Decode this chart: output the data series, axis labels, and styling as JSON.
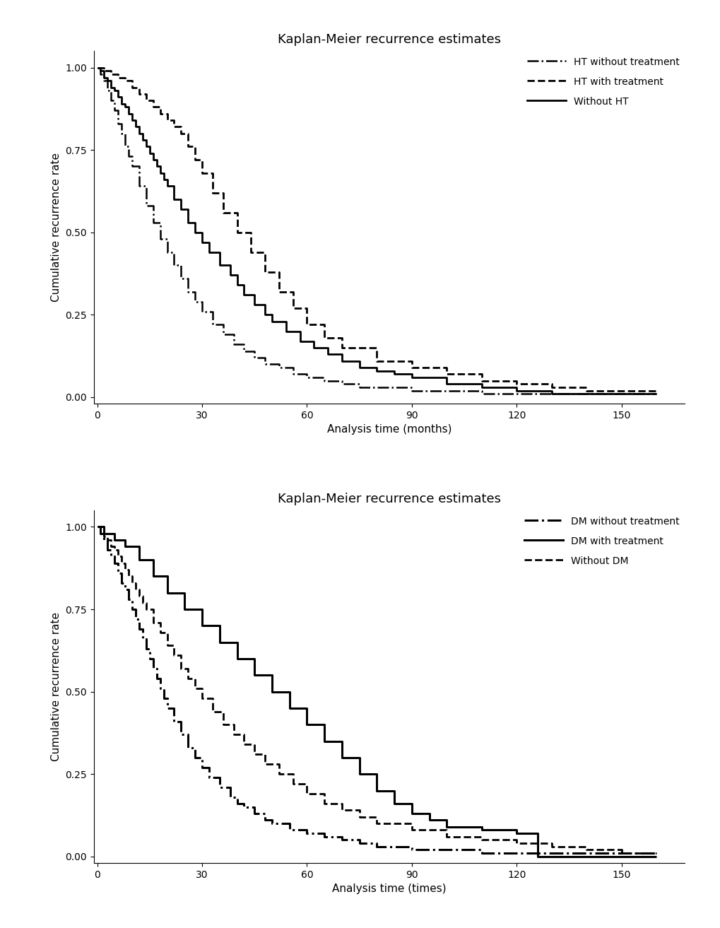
{
  "title": "Kaplan-Meier recurrence estimates",
  "panel1": {
    "xlabel": "Analysis time (months)",
    "ylabel": "Cumulative recurrence rate",
    "legend_labels": [
      "HT without treatment",
      "HT with treatment",
      "Without HT"
    ],
    "legend_linestyles": [
      "-.",
      "--",
      "-"
    ],
    "xlim": [
      -1,
      168
    ],
    "ylim": [
      -0.02,
      1.05
    ],
    "xticks": [
      0,
      30,
      60,
      90,
      120,
      150
    ],
    "yticks": [
      0.0,
      0.25,
      0.5,
      0.75,
      1.0
    ],
    "curves": {
      "ht_without": {
        "times": [
          0,
          1,
          2,
          3,
          4,
          5,
          6,
          7,
          8,
          9,
          10,
          12,
          14,
          16,
          18,
          20,
          22,
          24,
          26,
          28,
          30,
          33,
          36,
          39,
          42,
          45,
          48,
          52,
          56,
          60,
          65,
          70,
          75,
          80,
          90,
          100,
          110,
          120,
          130,
          160
        ],
        "survival": [
          1.0,
          0.98,
          0.96,
          0.93,
          0.9,
          0.87,
          0.83,
          0.8,
          0.76,
          0.73,
          0.7,
          0.64,
          0.58,
          0.53,
          0.48,
          0.44,
          0.4,
          0.36,
          0.32,
          0.29,
          0.26,
          0.22,
          0.19,
          0.16,
          0.14,
          0.12,
          0.1,
          0.09,
          0.07,
          0.06,
          0.05,
          0.04,
          0.03,
          0.03,
          0.02,
          0.02,
          0.01,
          0.01,
          0.01,
          0.01
        ],
        "linestyle": "-.",
        "linewidth": 1.8
      },
      "ht_with": {
        "times": [
          0,
          2,
          4,
          6,
          8,
          10,
          12,
          14,
          16,
          18,
          20,
          22,
          24,
          26,
          28,
          30,
          33,
          36,
          40,
          44,
          48,
          52,
          56,
          60,
          65,
          70,
          80,
          90,
          100,
          110,
          120,
          130,
          140,
          160
        ],
        "survival": [
          1.0,
          0.99,
          0.98,
          0.97,
          0.96,
          0.94,
          0.92,
          0.9,
          0.88,
          0.86,
          0.84,
          0.82,
          0.8,
          0.76,
          0.72,
          0.68,
          0.62,
          0.56,
          0.5,
          0.44,
          0.38,
          0.32,
          0.27,
          0.22,
          0.18,
          0.15,
          0.11,
          0.09,
          0.07,
          0.05,
          0.04,
          0.03,
          0.02,
          0.02
        ],
        "linestyle": "--",
        "linewidth": 2.0
      },
      "without_ht": {
        "times": [
          0,
          1,
          2,
          3,
          4,
          5,
          6,
          7,
          8,
          9,
          10,
          11,
          12,
          13,
          14,
          15,
          16,
          17,
          18,
          19,
          20,
          22,
          24,
          26,
          28,
          30,
          32,
          35,
          38,
          40,
          42,
          45,
          48,
          50,
          54,
          58,
          62,
          66,
          70,
          75,
          80,
          85,
          90,
          100,
          110,
          120,
          125,
          130,
          140,
          160
        ],
        "survival": [
          1.0,
          0.99,
          0.97,
          0.96,
          0.94,
          0.93,
          0.91,
          0.89,
          0.88,
          0.86,
          0.84,
          0.82,
          0.8,
          0.78,
          0.76,
          0.74,
          0.72,
          0.7,
          0.68,
          0.66,
          0.64,
          0.6,
          0.57,
          0.53,
          0.5,
          0.47,
          0.44,
          0.4,
          0.37,
          0.34,
          0.31,
          0.28,
          0.25,
          0.23,
          0.2,
          0.17,
          0.15,
          0.13,
          0.11,
          0.09,
          0.08,
          0.07,
          0.06,
          0.04,
          0.03,
          0.02,
          0.02,
          0.01,
          0.01,
          0.01
        ],
        "linestyle": "-",
        "linewidth": 2.0
      }
    }
  },
  "panel2": {
    "xlabel": "Analysis time (times)",
    "ylabel": "Cumulative recurrence rate",
    "legend_labels": [
      "DM without treatment",
      "DM with treatment",
      "Without DM"
    ],
    "legend_linestyles": [
      "-.",
      "-",
      "--"
    ],
    "xlim": [
      -1,
      168
    ],
    "ylim": [
      -0.02,
      1.05
    ],
    "xticks": [
      0,
      30,
      60,
      90,
      120,
      150
    ],
    "yticks": [
      0.0,
      0.25,
      0.5,
      0.75,
      1.0
    ],
    "curves": {
      "dm_without": {
        "times": [
          0,
          1,
          2,
          3,
          4,
          5,
          6,
          7,
          8,
          9,
          10,
          11,
          12,
          13,
          14,
          15,
          16,
          17,
          18,
          19,
          20,
          22,
          24,
          26,
          28,
          30,
          32,
          35,
          38,
          40,
          42,
          45,
          48,
          50,
          55,
          60,
          65,
          70,
          75,
          80,
          90,
          100,
          110,
          120,
          130,
          140,
          160
        ],
        "survival": [
          1.0,
          0.98,
          0.96,
          0.93,
          0.91,
          0.89,
          0.86,
          0.83,
          0.81,
          0.78,
          0.75,
          0.72,
          0.69,
          0.66,
          0.63,
          0.6,
          0.57,
          0.54,
          0.51,
          0.48,
          0.45,
          0.41,
          0.37,
          0.33,
          0.3,
          0.27,
          0.24,
          0.21,
          0.18,
          0.16,
          0.15,
          0.13,
          0.11,
          0.1,
          0.08,
          0.07,
          0.06,
          0.05,
          0.04,
          0.03,
          0.02,
          0.02,
          0.01,
          0.01,
          0.01,
          0.01,
          0.01
        ],
        "linestyle": "-.",
        "linewidth": 2.2
      },
      "dm_with": {
        "times": [
          0,
          2,
          5,
          8,
          12,
          16,
          20,
          25,
          30,
          35,
          40,
          45,
          50,
          55,
          60,
          65,
          70,
          75,
          80,
          85,
          90,
          95,
          100,
          110,
          120,
          125,
          126,
          160
        ],
        "survival": [
          1.0,
          0.98,
          0.96,
          0.94,
          0.9,
          0.85,
          0.8,
          0.75,
          0.7,
          0.65,
          0.6,
          0.55,
          0.5,
          0.45,
          0.4,
          0.35,
          0.3,
          0.25,
          0.2,
          0.16,
          0.13,
          0.11,
          0.09,
          0.08,
          0.07,
          0.07,
          0.0,
          0.0
        ],
        "linestyle": "-",
        "linewidth": 2.2
      },
      "without_dm": {
        "times": [
          0,
          1,
          2,
          3,
          4,
          5,
          6,
          7,
          8,
          9,
          10,
          11,
          12,
          13,
          14,
          16,
          18,
          20,
          22,
          24,
          26,
          28,
          30,
          33,
          36,
          39,
          42,
          45,
          48,
          52,
          56,
          60,
          65,
          70,
          75,
          80,
          90,
          100,
          110,
          120,
          130,
          140,
          150,
          160
        ],
        "survival": [
          1.0,
          0.99,
          0.97,
          0.96,
          0.94,
          0.93,
          0.91,
          0.89,
          0.87,
          0.85,
          0.83,
          0.81,
          0.79,
          0.77,
          0.75,
          0.71,
          0.68,
          0.64,
          0.61,
          0.57,
          0.54,
          0.51,
          0.48,
          0.44,
          0.4,
          0.37,
          0.34,
          0.31,
          0.28,
          0.25,
          0.22,
          0.19,
          0.16,
          0.14,
          0.12,
          0.1,
          0.08,
          0.06,
          0.05,
          0.04,
          0.03,
          0.02,
          0.01,
          0.01
        ],
        "linestyle": "--",
        "linewidth": 2.0
      }
    }
  },
  "color": "#000000",
  "background_color": "#ffffff",
  "title_fontsize": 13,
  "label_fontsize": 11,
  "tick_fontsize": 10,
  "legend_fontsize": 10
}
